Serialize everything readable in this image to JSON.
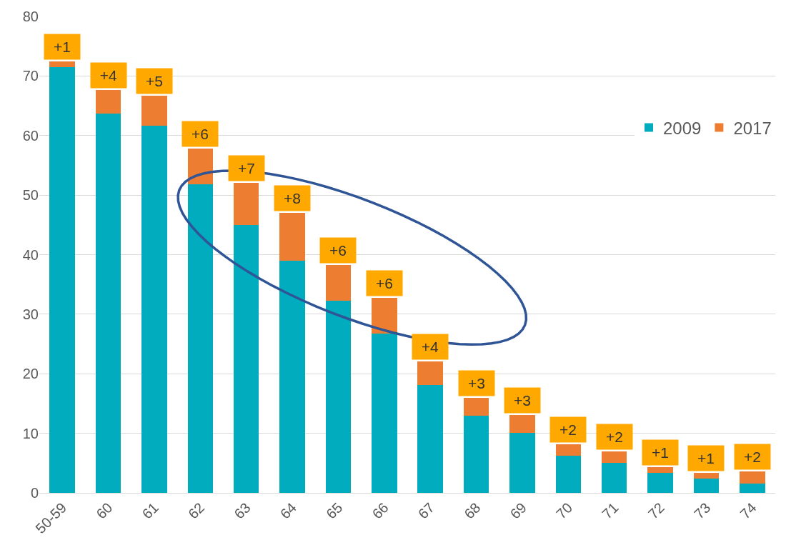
{
  "chart_data": {
    "type": "bar",
    "stacked": true,
    "categories": [
      "50-59",
      "60",
      "61",
      "62",
      "63",
      "64",
      "65",
      "66",
      "67",
      "68",
      "69",
      "70",
      "71",
      "72",
      "73",
      "74"
    ],
    "series": [
      {
        "name": "2009",
        "color": "#00acbe",
        "values": [
          71.5,
          63.7,
          61.7,
          51.8,
          45,
          39,
          32.3,
          26.7,
          18.1,
          13,
          10.1,
          6.2,
          5,
          3.3,
          2.4,
          1.6
        ]
      },
      {
        "name": "2017",
        "color": "#ed7d31",
        "values": [
          1,
          4,
          5,
          6,
          7,
          8,
          6,
          6,
          4,
          3,
          3,
          2,
          2,
          1,
          1,
          2
        ],
        "value_labels": [
          "+1",
          "+4",
          "+5",
          "+6",
          "+7",
          "+8",
          "+6",
          "+6",
          "+4",
          "+3",
          "+3",
          "+2",
          "+2",
          "+1",
          "+1",
          "+2"
        ]
      }
    ],
    "ylim": [
      0,
      80
    ],
    "yticks": [
      0,
      10,
      20,
      30,
      40,
      50,
      60,
      70,
      80
    ],
    "grid": "y",
    "legend": "top right"
  }
}
